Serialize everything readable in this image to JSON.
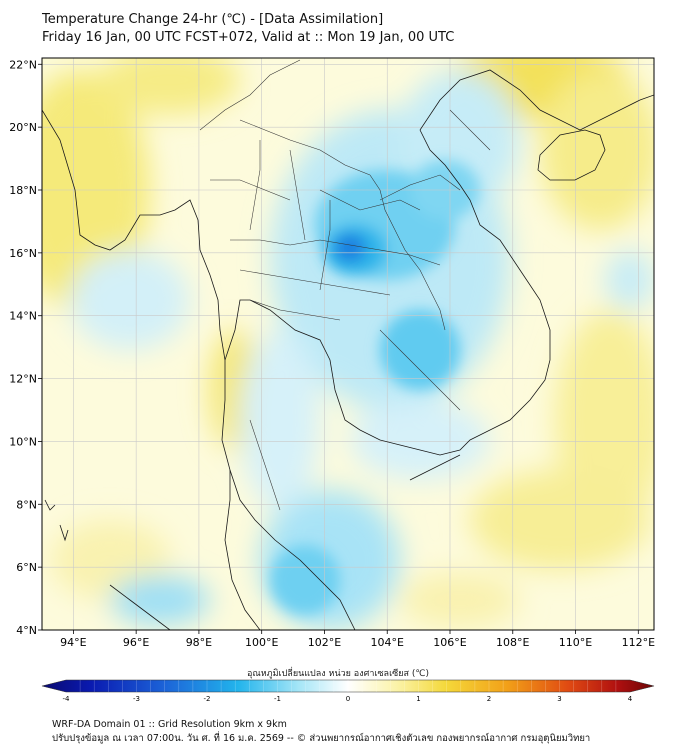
{
  "header": {
    "title_line1": "Temperature Change 24-hr (℃) - [Data Assimilation]",
    "title_line2": "Friday 16 Jan, 00 UTC FCST+072, Valid at :: Mon 19 Jan, 00 UTC"
  },
  "map": {
    "lon_ticks": [
      "94°E",
      "96°E",
      "98°E",
      "100°E",
      "102°E",
      "104°E",
      "106°E",
      "108°E",
      "110°E",
      "112°E"
    ],
    "lat_ticks": [
      "22°N",
      "20°N",
      "18°N",
      "16°N",
      "14°N",
      "12°N",
      "10°N",
      "8°N",
      "6°N",
      "4°N"
    ],
    "lon_range": [
      93,
      112.5
    ],
    "lat_range": [
      4,
      22.2
    ]
  },
  "colorbar": {
    "label": "อุณหภูมิเปลี่ยนแปลง หน่วย องศาเซลเซียส (℃)",
    "ticks": [
      "-4",
      "-3",
      "-2",
      "-1",
      "0",
      "1",
      "2",
      "3",
      "4"
    ],
    "range": [
      -4,
      4
    ]
  },
  "footer": {
    "line1": "WRF-DA Domain 01 :: Grid Resolution 9km x 9km",
    "line2": "ปรับปรุงข้อมูล ณ เวลา 07:00น. วัน ศ. ที่ 16 ม.ค. 2569 -- © ส่วนพยากรณ์อากาศเชิงตัวเลข กองพยากรณ์อากาศ กรมอุตุนิยมวิทยา"
  },
  "colors": {
    "yellow": "#f4e65a",
    "cyan": "#2bc2ee",
    "blue": "#1d72dc"
  }
}
